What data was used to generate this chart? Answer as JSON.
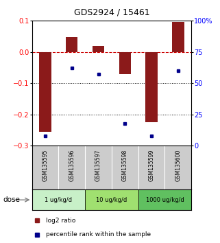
{
  "title": "GDS2924 / 15461",
  "samples": [
    "GSM135595",
    "GSM135596",
    "GSM135597",
    "GSM135598",
    "GSM135599",
    "GSM135600"
  ],
  "log2_ratio": [
    -0.255,
    0.048,
    0.02,
    -0.07,
    -0.225,
    0.095
  ],
  "percentile_rank": [
    8,
    62,
    57,
    18,
    8,
    60
  ],
  "bar_color": "#8B1A1A",
  "dot_color": "#00008B",
  "ylim_left": [
    -0.3,
    0.1
  ],
  "ylim_right": [
    0,
    100
  ],
  "yticks_left": [
    0.1,
    0,
    -0.1,
    -0.2,
    -0.3
  ],
  "yticks_right": [
    100,
    75,
    50,
    25,
    0
  ],
  "doses": [
    {
      "label": "1 ug/kg/d",
      "color": "#c8f0c8"
    },
    {
      "label": "10 ug/kg/d",
      "color": "#a0e070"
    },
    {
      "label": "1000 ug/kg/d",
      "color": "#60c060"
    }
  ],
  "dose_label": "dose",
  "legend_bar_label": "log2 ratio",
  "legend_dot_label": "percentile rank within the sample",
  "hline_color": "#cc0000",
  "dotted_lines": [
    -0.1,
    -0.2
  ],
  "sample_bg_color": "#cccccc",
  "background_color": "#ffffff"
}
